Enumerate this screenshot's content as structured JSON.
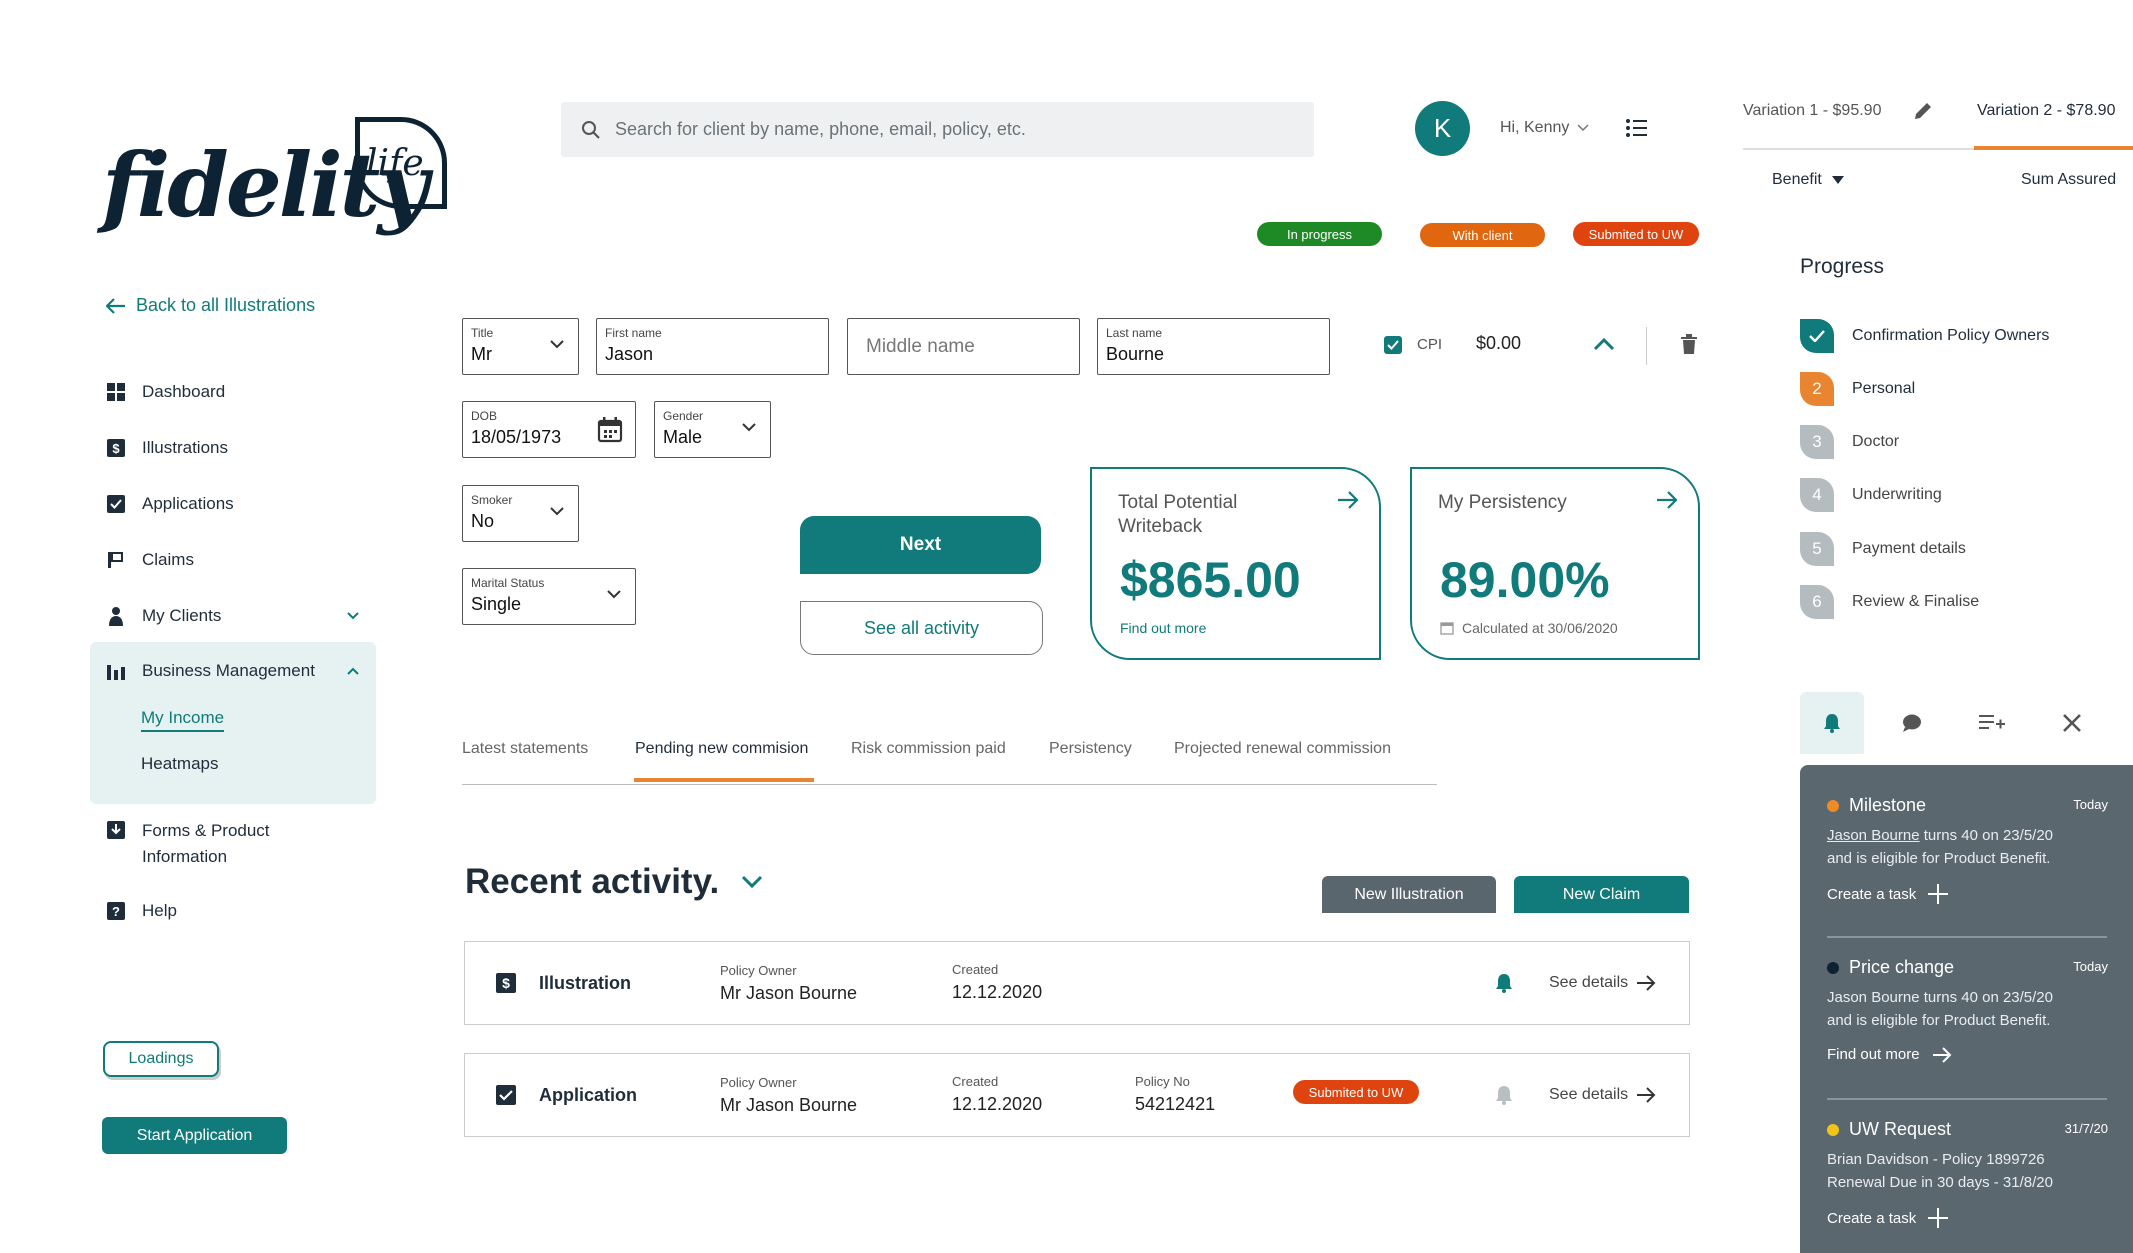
{
  "brand": {
    "logo_text": "fidelity",
    "logo_leaf": "life",
    "accent": "#117a7a",
    "orange": "#e98531"
  },
  "nav": {
    "back": "Back to all Illustrations",
    "items": [
      {
        "label": "Dashboard",
        "icon": "grid-icon"
      },
      {
        "label": "Illustrations",
        "icon": "dollar-doc-icon"
      },
      {
        "label": "Applications",
        "icon": "checkbox-icon"
      },
      {
        "label": "Claims",
        "icon": "flag-icon"
      },
      {
        "label": "My Clients",
        "icon": "person-icon"
      },
      {
        "label": "Business Management",
        "icon": "bar-chart-icon"
      },
      {
        "label": "Forms & Product",
        "label2": "Information",
        "icon": "download-icon"
      },
      {
        "label": "Help",
        "icon": "question-icon"
      }
    ],
    "sub": [
      "My Income",
      "Heatmaps"
    ],
    "loadings": "Loadings",
    "start_application": "Start Application"
  },
  "search": {
    "placeholder": "Search for client by name, phone, email, policy, etc."
  },
  "user": {
    "initial": "K",
    "greeting": "Hi, Kenny"
  },
  "badges": [
    {
      "label": "In progress",
      "color": "#1e8a25"
    },
    {
      "label": "With client",
      "color": "#e0660f"
    },
    {
      "label": "Submited to UW",
      "color": "#e0440e"
    }
  ],
  "form": {
    "title": {
      "label": "Title",
      "value": "Mr"
    },
    "first": {
      "label": "First name",
      "value": "Jason"
    },
    "middle": {
      "placeholder": "Middle name"
    },
    "last": {
      "label": "Last name",
      "value": "Bourne"
    },
    "dob": {
      "label": "DOB",
      "value": "18/05/1973"
    },
    "gender": {
      "label": "Gender",
      "value": "Male"
    },
    "smoker": {
      "label": "Smoker",
      "value": "No"
    },
    "marital": {
      "label": "Marital Status",
      "value": "Single"
    },
    "cpi_label": "CPI",
    "cpi_value": "$0.00"
  },
  "buttons": {
    "next": "Next",
    "see_all": "See all activity"
  },
  "cards": {
    "writeback": {
      "title1": "Total Potential",
      "title2": "Writeback",
      "value": "$865.00",
      "link": "Find out more"
    },
    "persistency": {
      "title": "My Persistency",
      "value": "89.00%",
      "foot": "Calculated at 30/06/2020"
    }
  },
  "tabs": [
    "Latest statements",
    "Pending new commision",
    "Risk commission paid",
    "Persistency",
    "Projected renewal commission"
  ],
  "recent": {
    "title": "Recent activity.",
    "new_illustration": "New Illustration",
    "new_claim": "New Claim",
    "rows": [
      {
        "kind": "Illustration",
        "owner_label": "Policy Owner",
        "owner": "Mr Jason Bourne",
        "created_label": "Created",
        "created": "12.12.2020",
        "details": "See details"
      },
      {
        "kind": "Application",
        "owner_label": "Policy Owner",
        "owner": "Mr Jason Bourne",
        "created_label": "Created",
        "created": "12.12.2020",
        "policy_label": "Policy No",
        "policy": "54212421",
        "badge": "Submited to UW",
        "details": "See details"
      }
    ]
  },
  "variations": {
    "v1": "Variation 1 - $95.90",
    "v2": "Variation 2 - $78.90",
    "benefit": "Benefit",
    "sum_assured": "Sum Assured"
  },
  "progress": {
    "title": "Progress",
    "steps": [
      {
        "num": "",
        "label": "Confirmation Policy Owners",
        "state": "done",
        "color": "#117a7a"
      },
      {
        "num": "2",
        "label": "Personal",
        "state": "active",
        "color": "#e98531"
      },
      {
        "num": "3",
        "label": "Doctor",
        "state": "todo",
        "color": "#b4bcc0"
      },
      {
        "num": "4",
        "label": "Underwriting",
        "state": "todo",
        "color": "#b4bcc0"
      },
      {
        "num": "5",
        "label": "Payment details",
        "state": "todo",
        "color": "#b4bcc0"
      },
      {
        "num": "6",
        "label": "Review & Finalise",
        "state": "todo",
        "color": "#b4bcc0"
      }
    ]
  },
  "notifications": [
    {
      "title": "Milestone",
      "when": "Today",
      "dot": "#f08a24",
      "link_name": "Jason Bourne",
      "body1": " turns 40 on 23/5/20",
      "body2": "and is eligible for Product Benefit.",
      "action": "Create a task"
    },
    {
      "title": "Price change",
      "when": "Today",
      "dot": "#0d2233",
      "body1": "Jason Bourne turns 40 on 23/5/20",
      "body2": "and is eligible for Product Benefit.",
      "action": "Find out more"
    },
    {
      "title": "UW Request",
      "when": "31/7/20",
      "dot": "#f2c318",
      "body1": "Brian Davidson - Policy 1899726",
      "body2": "Renewal Due in 30 days - 31/8/20",
      "action": "Create a task"
    }
  ]
}
